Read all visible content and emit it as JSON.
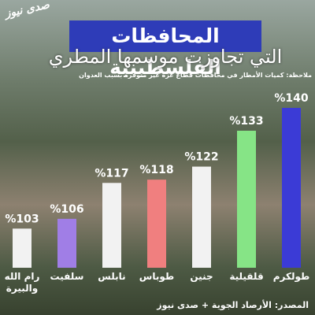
{
  "logo": "صدى نيوز",
  "chart_data": {
    "type": "bar",
    "title": "المحافظات الفلسطينية",
    "subtitle": "التي تجاوزت موسمها المطري",
    "note": "ملاحظة: كميات الأمطار في محافظات قطاع غزة غير متوفرة بسبب العدوان",
    "source": "المصدر: الأرصاد الجوية + صدى نيوز",
    "categories": [
      "رام الله والبيرة",
      "سلفيت",
      "نابلس",
      "طوباس",
      "جنين",
      "قلقيلية",
      "طولكرم"
    ],
    "values": [
      103,
      106,
      117,
      118,
      122,
      133,
      140
    ],
    "value_labels": [
      "%103",
      "%106",
      "%117",
      "%118",
      "%122",
      "%133",
      "%140"
    ],
    "colors": [
      "#f2f2f2",
      "#a07ee6",
      "#f2f2f2",
      "#f07f7f",
      "#f2f2f2",
      "#86e486",
      "#3b3bd6"
    ],
    "ylim": [
      91,
      140
    ]
  }
}
